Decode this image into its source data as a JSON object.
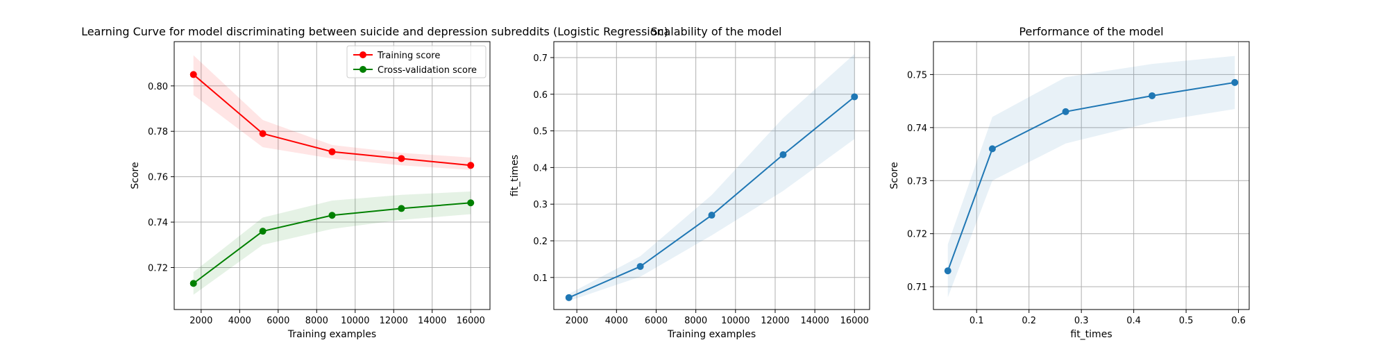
{
  "chart_data": [
    {
      "type": "line",
      "title": "Learning Curve for model discriminating between suicide and depression subreddits (Logistic Regression)",
      "xlabel": "Training examples",
      "ylabel": "Score",
      "xlim": [
        600,
        17000
      ],
      "ylim": [
        0.7015,
        0.8195
      ],
      "xticks": [
        2000,
        4000,
        6000,
        8000,
        10000,
        12000,
        14000,
        16000
      ],
      "yticks": [
        0.72,
        0.74,
        0.76,
        0.78,
        0.8
      ],
      "grid": true,
      "legend_position": "upper right",
      "series": [
        {
          "name": "Training score",
          "color": "#ff0000",
          "x": [
            1600,
            5200,
            8800,
            12400,
            16000
          ],
          "y": [
            0.805,
            0.779,
            0.771,
            0.768,
            0.765
          ],
          "band_low": [
            0.796,
            0.773,
            0.768,
            0.765,
            0.763
          ],
          "band_high": [
            0.8135,
            0.785,
            0.774,
            0.7705,
            0.7685
          ]
        },
        {
          "name": "Cross-validation score",
          "color": "#008000",
          "x": [
            1600,
            5200,
            8800,
            12400,
            16000
          ],
          "y": [
            0.713,
            0.736,
            0.743,
            0.746,
            0.7485
          ],
          "band_low": [
            0.708,
            0.73,
            0.737,
            0.741,
            0.7435
          ],
          "band_high": [
            0.718,
            0.742,
            0.7495,
            0.752,
            0.7535
          ]
        }
      ]
    },
    {
      "type": "line",
      "title": "Scalability of the model",
      "xlabel": "Training examples",
      "ylabel": "fit_times",
      "xlim": [
        840,
        16760
      ],
      "ylim": [
        0.0125,
        0.7435
      ],
      "xticks": [
        2000,
        4000,
        6000,
        8000,
        10000,
        12000,
        14000,
        16000
      ],
      "yticks": [
        0.1,
        0.2,
        0.3,
        0.4,
        0.5,
        0.6,
        0.7
      ],
      "grid": true,
      "series": [
        {
          "color": "#1f77b4",
          "x": [
            1600,
            5200,
            8800,
            12400,
            16000
          ],
          "y": [
            0.045,
            0.13,
            0.27,
            0.435,
            0.593
          ],
          "band_low": [
            0.036,
            0.102,
            0.215,
            0.336,
            0.478
          ],
          "band_high": [
            0.055,
            0.158,
            0.325,
            0.535,
            0.71
          ]
        }
      ]
    },
    {
      "type": "line",
      "title": "Performance of the model",
      "xlabel": "fit_times",
      "ylabel": "Score",
      "xlim": [
        0.0175,
        0.6205
      ],
      "ylim": [
        0.7057,
        0.7562
      ],
      "xticks": [
        0.1,
        0.2,
        0.3,
        0.4,
        0.5,
        0.6
      ],
      "yticks": [
        0.71,
        0.72,
        0.73,
        0.74,
        0.75
      ],
      "grid": true,
      "series": [
        {
          "color": "#1f77b4",
          "x": [
            0.045,
            0.13,
            0.27,
            0.435,
            0.593
          ],
          "y": [
            0.713,
            0.736,
            0.743,
            0.746,
            0.7485
          ],
          "band_low": [
            0.708,
            0.73,
            0.737,
            0.741,
            0.7435
          ],
          "band_high": [
            0.718,
            0.742,
            0.7495,
            0.752,
            0.7535
          ]
        }
      ]
    }
  ]
}
